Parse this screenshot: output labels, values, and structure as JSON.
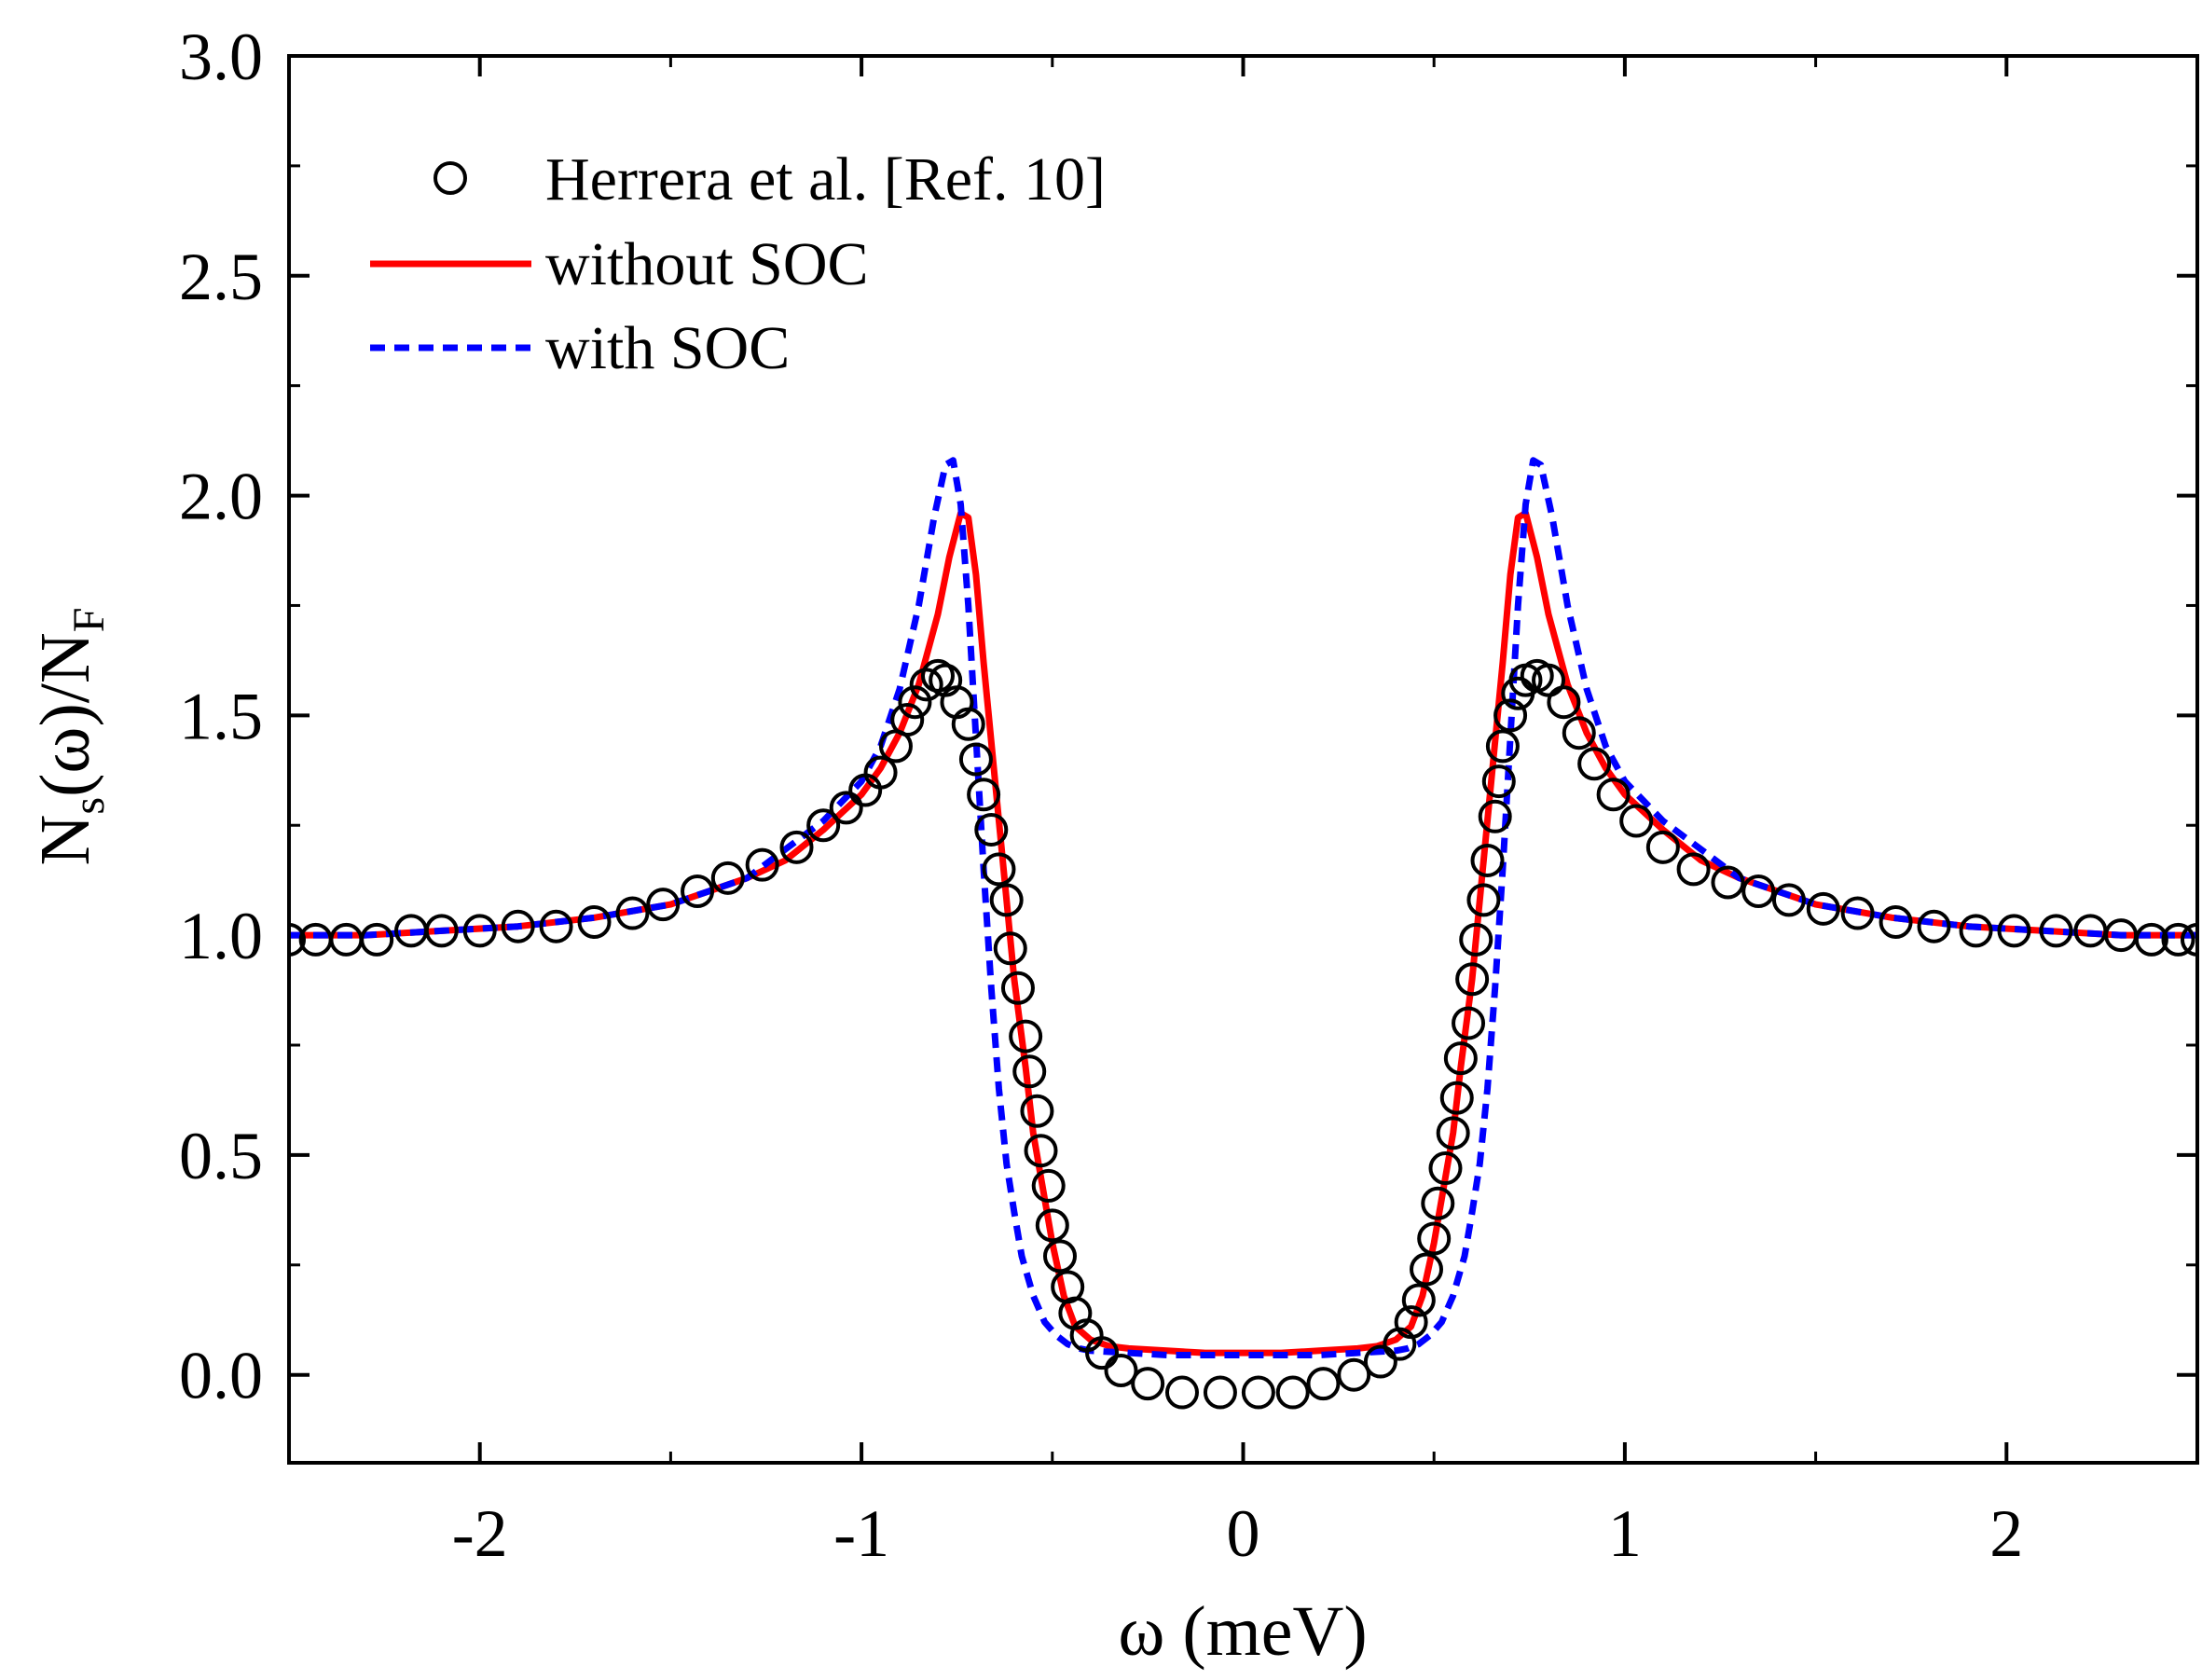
{
  "chart_data": {
    "type": "line",
    "title": "",
    "xlabel": "ω (meV)",
    "ylabel_main": "N",
    "ylabel_sub1": "s",
    "ylabel_mid": "(ω)/N",
    "ylabel_sub2": "F",
    "xlim": [
      -2.5,
      2.5
    ],
    "ylim": [
      -0.2,
      3.0
    ],
    "x_ticks": [
      -2,
      -1,
      0,
      1,
      2
    ],
    "x_tick_labels": [
      "-2",
      "-1",
      "0",
      "1",
      "2"
    ],
    "y_ticks": [
      0.0,
      0.5,
      1.0,
      1.5,
      2.0,
      2.5,
      3.0
    ],
    "y_tick_labels": [
      "0.0",
      "0.5",
      "1.0",
      "1.5",
      "2.0",
      "2.5",
      "3.0"
    ],
    "legend_position": "top-left",
    "series": [
      {
        "name": "Herrera et al. [Ref. 10]",
        "kind": "markers",
        "marker": "open-circle",
        "color": "#000000",
        "x": [
          -2.5,
          -2.43,
          -2.35,
          -2.27,
          -2.18,
          -2.1,
          -2.0,
          -1.9,
          -1.8,
          -1.7,
          -1.6,
          -1.52,
          -1.43,
          -1.35,
          -1.26,
          -1.17,
          -1.1,
          -1.04,
          -0.99,
          -0.95,
          -0.91,
          -0.88,
          -0.86,
          -0.83,
          -0.8,
          -0.78,
          -0.75,
          -0.72,
          -0.7,
          -0.68,
          -0.66,
          -0.64,
          -0.62,
          -0.61,
          -0.59,
          -0.57,
          -0.56,
          -0.54,
          -0.53,
          -0.51,
          -0.5,
          -0.48,
          -0.46,
          -0.44,
          -0.41,
          -0.37,
          -0.32,
          -0.25,
          -0.16,
          -0.06,
          0.04,
          0.13,
          0.21,
          0.29,
          0.36,
          0.41,
          0.44,
          0.46,
          0.48,
          0.5,
          0.51,
          0.53,
          0.55,
          0.56,
          0.57,
          0.59,
          0.6,
          0.61,
          0.63,
          0.64,
          0.66,
          0.67,
          0.68,
          0.7,
          0.72,
          0.74,
          0.77,
          0.8,
          0.84,
          0.88,
          0.92,
          0.97,
          1.03,
          1.1,
          1.18,
          1.27,
          1.35,
          1.43,
          1.52,
          1.61,
          1.71,
          1.81,
          1.92,
          2.02,
          2.13,
          2.22,
          2.3,
          2.38,
          2.45,
          2.5
        ],
        "y": [
          0.99,
          0.99,
          0.99,
          0.99,
          1.01,
          1.01,
          1.01,
          1.02,
          1.02,
          1.03,
          1.05,
          1.07,
          1.1,
          1.13,
          1.16,
          1.2,
          1.25,
          1.29,
          1.33,
          1.37,
          1.43,
          1.49,
          1.53,
          1.57,
          1.59,
          1.58,
          1.53,
          1.48,
          1.4,
          1.32,
          1.24,
          1.15,
          1.08,
          0.97,
          0.88,
          0.77,
          0.69,
          0.6,
          0.51,
          0.43,
          0.34,
          0.27,
          0.2,
          0.14,
          0.09,
          0.05,
          0.01,
          -0.02,
          -0.04,
          -0.04,
          -0.04,
          -0.04,
          -0.02,
          0.0,
          0.03,
          0.07,
          0.12,
          0.17,
          0.24,
          0.31,
          0.39,
          0.47,
          0.55,
          0.63,
          0.72,
          0.8,
          0.9,
          0.99,
          1.08,
          1.17,
          1.27,
          1.35,
          1.43,
          1.5,
          1.55,
          1.58,
          1.59,
          1.58,
          1.53,
          1.46,
          1.39,
          1.32,
          1.26,
          1.2,
          1.15,
          1.12,
          1.1,
          1.08,
          1.06,
          1.05,
          1.03,
          1.02,
          1.01,
          1.01,
          1.01,
          1.01,
          1.0,
          0.99,
          0.99,
          0.99
        ]
      },
      {
        "name": "without SOC",
        "kind": "line",
        "dash": "solid",
        "color": "#ff0000",
        "x": [
          -2.5,
          -2.3,
          -2.1,
          -1.9,
          -1.7,
          -1.5,
          -1.3,
          -1.2,
          -1.1,
          -1.0,
          -0.95,
          -0.9,
          -0.85,
          -0.8,
          -0.77,
          -0.74,
          -0.72,
          -0.7,
          -0.68,
          -0.65,
          -0.62,
          -0.6,
          -0.57,
          -0.55,
          -0.52,
          -0.5,
          -0.47,
          -0.44,
          -0.4,
          -0.35,
          -0.3,
          -0.2,
          -0.1,
          0.0,
          0.1,
          0.2,
          0.3,
          0.35,
          0.4,
          0.44,
          0.47,
          0.5,
          0.52,
          0.55,
          0.57,
          0.6,
          0.62,
          0.65,
          0.68,
          0.7,
          0.72,
          0.74,
          0.77,
          0.8,
          0.85,
          0.9,
          0.95,
          1.0,
          1.1,
          1.2,
          1.3,
          1.5,
          1.7,
          1.9,
          2.1,
          2.3,
          2.5
        ],
        "y": [
          1.0,
          1.0,
          1.01,
          1.02,
          1.04,
          1.07,
          1.13,
          1.17,
          1.24,
          1.32,
          1.38,
          1.46,
          1.57,
          1.73,
          1.86,
          1.96,
          1.95,
          1.82,
          1.62,
          1.35,
          1.08,
          0.9,
          0.7,
          0.55,
          0.4,
          0.3,
          0.18,
          0.11,
          0.08,
          0.065,
          0.06,
          0.055,
          0.05,
          0.05,
          0.05,
          0.055,
          0.06,
          0.065,
          0.08,
          0.11,
          0.18,
          0.3,
          0.4,
          0.55,
          0.7,
          0.9,
          1.08,
          1.35,
          1.62,
          1.82,
          1.95,
          1.96,
          1.86,
          1.73,
          1.57,
          1.46,
          1.38,
          1.32,
          1.24,
          1.17,
          1.13,
          1.07,
          1.04,
          1.02,
          1.01,
          1.0,
          1.0
        ]
      },
      {
        "name": "with SOC",
        "kind": "line",
        "dash": "dashed",
        "color": "#0000ff",
        "x": [
          -2.5,
          -2.3,
          -2.1,
          -1.9,
          -1.7,
          -1.5,
          -1.3,
          -1.1,
          -1.0,
          -0.95,
          -0.9,
          -0.85,
          -0.81,
          -0.78,
          -0.76,
          -0.74,
          -0.72,
          -0.7,
          -0.68,
          -0.66,
          -0.64,
          -0.62,
          -0.6,
          -0.58,
          -0.55,
          -0.52,
          -0.49,
          -0.46,
          -0.43,
          -0.4,
          -0.3,
          -0.2,
          -0.1,
          0.0,
          0.1,
          0.2,
          0.3,
          0.4,
          0.43,
          0.46,
          0.49,
          0.52,
          0.55,
          0.58,
          0.6,
          0.62,
          0.64,
          0.66,
          0.68,
          0.7,
          0.72,
          0.74,
          0.76,
          0.78,
          0.81,
          0.85,
          0.9,
          0.95,
          1.0,
          1.1,
          1.3,
          1.5,
          1.7,
          1.9,
          2.1,
          2.3,
          2.5
        ],
        "y": [
          1.0,
          1.0,
          1.01,
          1.02,
          1.04,
          1.07,
          1.13,
          1.26,
          1.35,
          1.43,
          1.56,
          1.75,
          1.95,
          2.07,
          2.08,
          1.98,
          1.75,
          1.45,
          1.15,
          0.88,
          0.65,
          0.48,
          0.37,
          0.27,
          0.18,
          0.12,
          0.09,
          0.07,
          0.06,
          0.055,
          0.05,
          0.045,
          0.045,
          0.045,
          0.045,
          0.045,
          0.05,
          0.055,
          0.06,
          0.07,
          0.09,
          0.12,
          0.18,
          0.27,
          0.37,
          0.48,
          0.65,
          0.88,
          1.15,
          1.45,
          1.75,
          1.98,
          2.08,
          2.07,
          1.95,
          1.75,
          1.56,
          1.43,
          1.35,
          1.26,
          1.13,
          1.07,
          1.04,
          1.02,
          1.01,
          1.0,
          1.0
        ]
      }
    ]
  }
}
